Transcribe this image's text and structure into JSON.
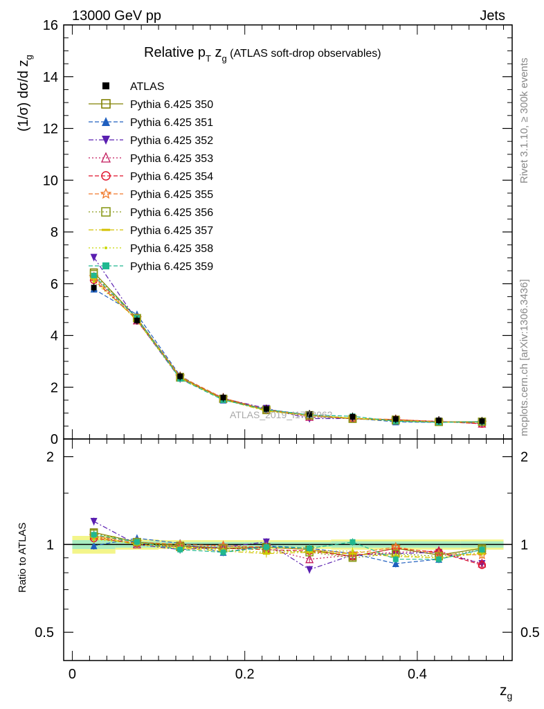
{
  "header": {
    "left": "13000 GeV pp",
    "right": "Jets"
  },
  "title": {
    "main": "Relative p",
    "sub_T": "T",
    "z": " z",
    "sub_g": "g",
    "rest": " (ATLAS soft-drop observables)"
  },
  "side": {
    "rivet": "Rivet 3.1.10, ≥ 300k events",
    "mcplots": "mcplots.cern.ch [arXiv:1306.3436]"
  },
  "watermark": "ATLAS_2019_I1772062",
  "axes": {
    "top_ylabel_main": "(1/σ) dσ/d z",
    "top_ylabel_sub": "g",
    "bottom_ylabel": "Ratio to ATLAS",
    "xlabel_main": "z",
    "xlabel_sub": "g"
  },
  "chart_data": [
    {
      "type": "scatter",
      "panel": "main",
      "xlim": [
        -0.01,
        0.51
      ],
      "ylim": [
        0,
        16
      ],
      "x_ticks": [
        0,
        0.2,
        0.4
      ],
      "x_tick_labels": [
        "0",
        "0.2",
        "0.4"
      ],
      "y_ticks": [
        0,
        2,
        4,
        6,
        8,
        10,
        12,
        14,
        16
      ],
      "y_tick_labels": [
        "0",
        "2",
        "4",
        "6",
        "8",
        "10",
        "12",
        "14",
        "16"
      ],
      "x": [
        0.025,
        0.075,
        0.125,
        0.175,
        0.225,
        0.275,
        0.325,
        0.375,
        0.425,
        0.475
      ],
      "reference": {
        "name": "ATLAS",
        "values": [
          5.85,
          4.58,
          2.42,
          1.6,
          1.16,
          0.96,
          0.86,
          0.77,
          0.72,
          0.69
        ]
      },
      "series": [
        {
          "name": "Pythia 6.425 350",
          "color": "#808000",
          "line": "solid",
          "marker": "square-open",
          "ratio": [
            1.1,
            1.02,
            0.99,
            0.97,
            0.98,
            0.96,
            0.91,
            0.97,
            0.92,
            0.97
          ]
        },
        {
          "name": "Pythia 6.425 351",
          "color": "#1f5fbf",
          "line": "dash",
          "marker": "triangle-up-filled",
          "ratio": [
            0.99,
            1.05,
            1.01,
            0.94,
            0.99,
            0.97,
            0.93,
            0.86,
            0.89,
            0.96
          ]
        },
        {
          "name": "Pythia 6.425 352",
          "color": "#5a1fb0",
          "line": "dashdot",
          "marker": "triangle-down-filled",
          "ratio": [
            1.2,
            1.0,
            0.96,
            0.98,
            1.02,
            0.82,
            0.92,
            0.93,
            0.94,
            0.86
          ]
        },
        {
          "name": "Pythia 6.425 353",
          "color": "#c2185b",
          "line": "dot",
          "marker": "triangle-up-open",
          "ratio": [
            1.07,
            1.0,
            0.98,
            0.99,
            0.97,
            0.89,
            0.92,
            0.94,
            0.95,
            0.86
          ]
        },
        {
          "name": "Pythia 6.425 354",
          "color": "#e0102a",
          "line": "dash",
          "marker": "circle-open",
          "ratio": [
            1.05,
            1.01,
            0.98,
            0.97,
            0.96,
            0.95,
            0.91,
            0.97,
            0.94,
            0.85
          ]
        },
        {
          "name": "Pythia 6.425 355",
          "color": "#f0782a",
          "line": "dash",
          "marker": "star-open",
          "ratio": [
            1.07,
            1.02,
            1.0,
            0.99,
            0.98,
            0.96,
            0.93,
            0.98,
            0.93,
            0.92
          ]
        },
        {
          "name": "Pythia 6.425 356",
          "color": "#8a9a1a",
          "line": "dot",
          "marker": "square-open",
          "ratio": [
            1.09,
            1.02,
            0.98,
            0.97,
            0.96,
            0.94,
            0.9,
            0.93,
            0.91,
            0.96
          ]
        },
        {
          "name": "Pythia 6.425 357",
          "color": "#d4c000",
          "line": "dashdot",
          "marker": "dash",
          "ratio": [
            1.06,
            1.0,
            0.97,
            0.95,
            0.93,
            0.94,
            0.93,
            0.91,
            0.9,
            0.93
          ]
        },
        {
          "name": "Pythia 6.425 358",
          "color": "#c8d800",
          "line": "dot",
          "marker": "dot",
          "ratio": [
            1.04,
            1.01,
            0.98,
            0.96,
            0.94,
            0.95,
            0.95,
            0.92,
            0.9,
            0.94
          ]
        },
        {
          "name": "Pythia 6.425 359",
          "color": "#20b890",
          "line": "dash",
          "marker": "square-filled",
          "ratio": [
            1.08,
            1.02,
            0.96,
            0.94,
            0.98,
            0.97,
            1.02,
            0.89,
            0.89,
            0.96
          ]
        }
      ],
      "legend_placement": "top-left"
    },
    {
      "type": "scatter",
      "panel": "ratio",
      "xlim": [
        -0.01,
        0.51
      ],
      "ylim": [
        0.4,
        2.3
      ],
      "y_scale": "log",
      "y_ticks": [
        0.5,
        1,
        2
      ],
      "y_tick_labels": [
        "0.5",
        "1",
        "2"
      ],
      "x_tick_labels": [
        "0",
        "0.2",
        "0.4"
      ],
      "reference_line": 1,
      "band_inner": [
        0.035,
        0.025,
        0.02,
        0.02,
        0.02,
        0.02,
        0.025,
        0.025,
        0.025,
        0.025
      ],
      "band_outer": [
        0.07,
        0.04,
        0.035,
        0.035,
        0.035,
        0.035,
        0.04,
        0.04,
        0.04,
        0.04
      ]
    }
  ]
}
